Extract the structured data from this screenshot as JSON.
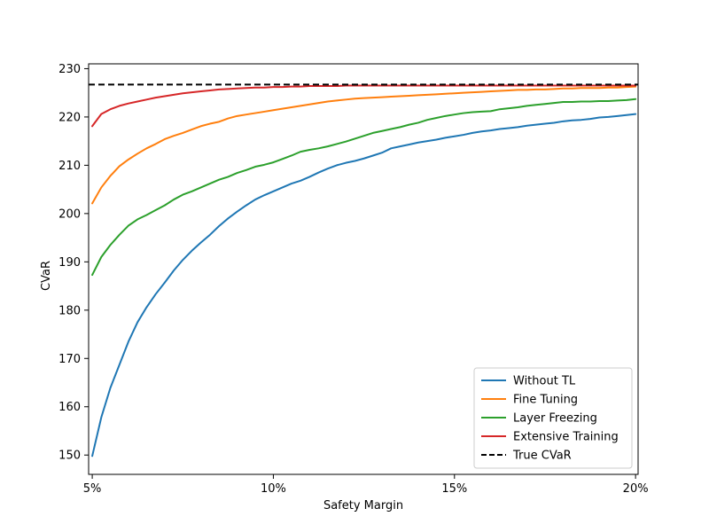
{
  "chart_data": {
    "type": "line",
    "title": "",
    "xlabel": "Safety Margin",
    "ylabel": "CVaR",
    "xlim": [
      0.049,
      0.2007
    ],
    "ylim": [
      146,
      231
    ],
    "x_ticks": [
      {
        "value": 0.05,
        "label": "5%"
      },
      {
        "value": 0.1,
        "label": "10%"
      },
      {
        "value": 0.15,
        "label": "15%"
      },
      {
        "value": 0.2,
        "label": "20%"
      }
    ],
    "y_ticks": [
      {
        "value": 150,
        "label": "150"
      },
      {
        "value": 160,
        "label": "160"
      },
      {
        "value": 170,
        "label": "170"
      },
      {
        "value": 180,
        "label": "180"
      },
      {
        "value": 190,
        "label": "190"
      },
      {
        "value": 200,
        "label": "200"
      },
      {
        "value": 210,
        "label": "210"
      },
      {
        "value": 220,
        "label": "220"
      },
      {
        "value": 230,
        "label": "230"
      }
    ],
    "grid": false,
    "legend_position": "lower-right",
    "x": [
      0.05,
      0.0525,
      0.055,
      0.0575,
      0.06,
      0.0625,
      0.065,
      0.0675,
      0.07,
      0.0725,
      0.075,
      0.0775,
      0.08,
      0.0825,
      0.085,
      0.0875,
      0.09,
      0.0925,
      0.095,
      0.0975,
      0.1,
      0.1025,
      0.105,
      0.1075,
      0.11,
      0.1125,
      0.115,
      0.1175,
      0.12,
      0.1225,
      0.125,
      0.1275,
      0.13,
      0.1325,
      0.135,
      0.1375,
      0.14,
      0.1425,
      0.145,
      0.1475,
      0.15,
      0.1525,
      0.155,
      0.1575,
      0.16,
      0.1625,
      0.165,
      0.1675,
      0.17,
      0.1725,
      0.175,
      0.1775,
      0.18,
      0.1825,
      0.185,
      0.1875,
      0.19,
      0.1925,
      0.195,
      0.1975,
      0.2
    ],
    "series": [
      {
        "name": "Without TL",
        "color": "#1f77b4",
        "dashed": false,
        "values": [
          149.8,
          157.8,
          163.9,
          168.7,
          173.5,
          177.5,
          180.6,
          183.3,
          185.7,
          188.2,
          190.4,
          192.3,
          194.0,
          195.6,
          197.4,
          199.0,
          200.4,
          201.7,
          202.9,
          203.8,
          204.6,
          205.4,
          206.2,
          206.8,
          207.6,
          208.5,
          209.3,
          210.0,
          210.5,
          210.9,
          211.4,
          212.0,
          212.6,
          213.5,
          213.9,
          214.3,
          214.7,
          215.0,
          215.3,
          215.7,
          216.0,
          216.3,
          216.7,
          217.0,
          217.2,
          217.5,
          217.7,
          217.9,
          218.2,
          218.4,
          218.6,
          218.8,
          219.1,
          219.3,
          219.4,
          219.6,
          219.9,
          220.0,
          220.2,
          220.4,
          220.6
        ]
      },
      {
        "name": "Fine Tuning",
        "color": "#ff7f0e",
        "dashed": false,
        "values": [
          202.1,
          205.4,
          207.8,
          209.8,
          211.2,
          212.4,
          213.5,
          214.4,
          215.4,
          216.1,
          216.7,
          217.4,
          218.1,
          218.6,
          219.0,
          219.7,
          220.2,
          220.5,
          220.8,
          221.1,
          221.4,
          221.7,
          222.0,
          222.3,
          222.6,
          222.9,
          223.2,
          223.4,
          223.6,
          223.8,
          223.9,
          224.0,
          224.1,
          224.2,
          224.3,
          224.4,
          224.5,
          224.6,
          224.7,
          224.8,
          224.9,
          225.0,
          225.1,
          225.2,
          225.3,
          225.4,
          225.5,
          225.6,
          225.6,
          225.7,
          225.7,
          225.8,
          225.9,
          225.9,
          226.0,
          226.0,
          226.0,
          226.1,
          226.1,
          226.2,
          226.3
        ]
      },
      {
        "name": "Layer Freezing",
        "color": "#2ca02c",
        "dashed": false,
        "values": [
          187.3,
          191.0,
          193.5,
          195.6,
          197.5,
          198.8,
          199.7,
          200.7,
          201.7,
          202.9,
          203.9,
          204.6,
          205.4,
          206.2,
          207.0,
          207.6,
          208.4,
          209.0,
          209.7,
          210.1,
          210.6,
          211.3,
          212.0,
          212.8,
          213.2,
          213.5,
          213.9,
          214.4,
          214.9,
          215.5,
          216.1,
          216.7,
          217.1,
          217.5,
          217.9,
          218.4,
          218.8,
          219.4,
          219.8,
          220.2,
          220.5,
          220.8,
          221.0,
          221.1,
          221.2,
          221.6,
          221.8,
          222.0,
          222.3,
          222.5,
          222.7,
          222.9,
          223.1,
          223.1,
          223.2,
          223.2,
          223.3,
          223.3,
          223.4,
          223.5,
          223.7
        ]
      },
      {
        "name": "Extensive Training",
        "color": "#d62728",
        "dashed": false,
        "values": [
          218.1,
          220.6,
          221.6,
          222.3,
          222.8,
          223.2,
          223.6,
          224.0,
          224.3,
          224.6,
          224.9,
          225.1,
          225.3,
          225.5,
          225.7,
          225.8,
          225.9,
          226.0,
          226.1,
          226.1,
          226.2,
          226.2,
          226.3,
          226.3,
          226.4,
          226.4,
          226.4,
          226.4,
          226.5,
          226.5,
          226.5,
          226.5,
          226.5,
          226.5,
          226.5,
          226.5,
          226.5,
          226.5,
          226.5,
          226.5,
          226.5,
          226.5,
          226.5,
          226.5,
          226.5,
          226.5,
          226.5,
          226.5,
          226.5,
          226.5,
          226.5,
          226.5,
          226.5,
          226.5,
          226.5,
          226.5,
          226.5,
          226.5,
          226.5,
          226.5,
          226.5
        ]
      }
    ],
    "reference_line": {
      "name": "True CVaR",
      "color": "#000000",
      "dashed": true,
      "y": 226.7
    }
  }
}
